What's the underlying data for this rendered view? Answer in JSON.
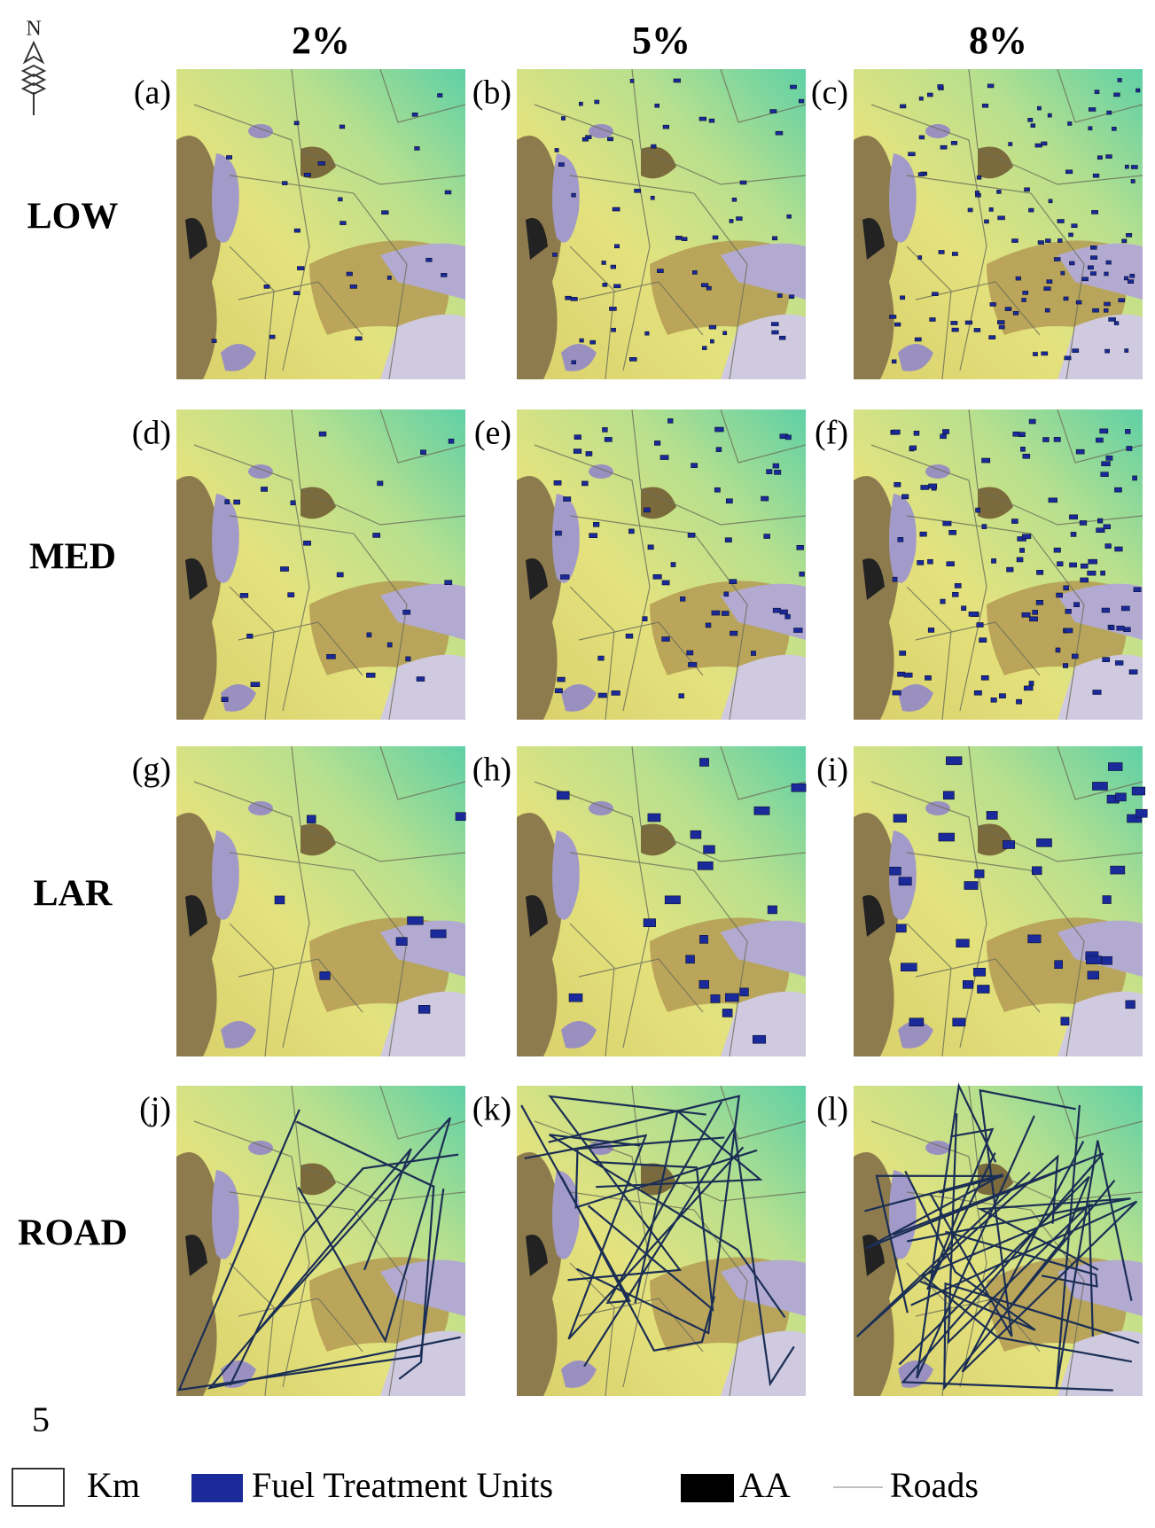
{
  "north": "N",
  "columns": [
    "2%",
    "5%",
    "8%"
  ],
  "rows": [
    "LOW",
    "MED",
    "LAR",
    "ROAD"
  ],
  "panels": [
    "(a)",
    "(b)",
    "(c)",
    "(d)",
    "(e)",
    "(f)",
    "(g)",
    "(h)",
    "(i)",
    "(j)",
    "(k)",
    "(l)"
  ],
  "scale_bar": {
    "value": "5",
    "unit": "Km"
  },
  "legend": [
    "Fuel Treatment Units",
    "AA",
    "Roads"
  ]
}
